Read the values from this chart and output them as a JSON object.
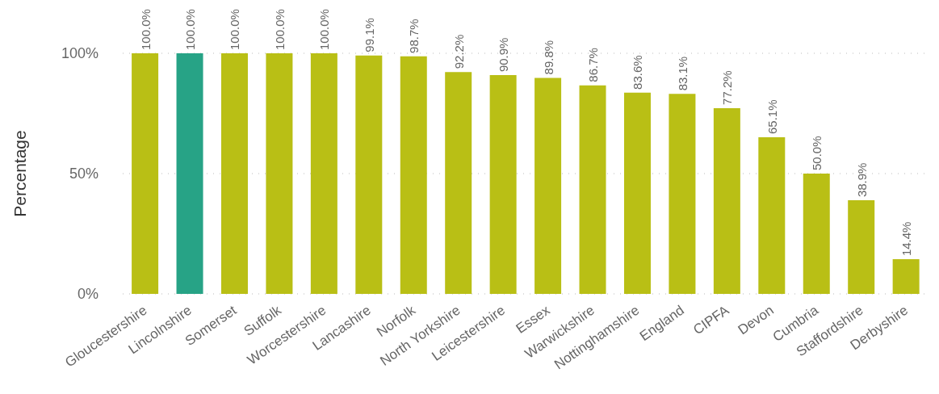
{
  "chart_data": {
    "type": "bar",
    "ylabel": "Percentage",
    "categories": [
      "Gloucestershire",
      "Lincolnshire",
      "Somerset",
      "Suffolk",
      "Worcestershire",
      "Lancashire",
      "Norfolk",
      "North Yorkshire",
      "Leicestershire",
      "Essex",
      "Warwickshire",
      "Nottinghamshire",
      "England",
      "CIPFA",
      "Devon",
      "Cumbria",
      "Staffordshire",
      "Derbyshire"
    ],
    "values": [
      100,
      100,
      100,
      100,
      100,
      99.1,
      98.7,
      92.2,
      90.9,
      89.8,
      86.7,
      83.6,
      83.1,
      77.2,
      65.1,
      50.0,
      38.9,
      14.4
    ],
    "value_labels": [
      "100.0%",
      "100.0%",
      "100.0%",
      "100.0%",
      "100.0%",
      "99.1%",
      "98.7%",
      "92.2%",
      "90.9%",
      "89.8%",
      "86.7%",
      "83.6%",
      "83.1%",
      "77.2%",
      "65.1%",
      "50.0%",
      "38.9%",
      "14.4%"
    ],
    "colors": [
      "#b9bf15",
      "#27a386",
      "#b9bf15",
      "#b9bf15",
      "#b9bf15",
      "#b9bf15",
      "#b9bf15",
      "#b9bf15",
      "#b9bf15",
      "#b9bf15",
      "#b9bf15",
      "#b9bf15",
      "#b9bf15",
      "#b9bf15",
      "#b9bf15",
      "#b9bf15",
      "#b9bf15",
      "#b9bf15"
    ],
    "ylim": [
      0,
      100
    ],
    "yticks": [
      {
        "value": 0,
        "label": "0%"
      },
      {
        "value": 50,
        "label": "50%"
      },
      {
        "value": 100,
        "label": "100%"
      }
    ],
    "grid": "y"
  }
}
